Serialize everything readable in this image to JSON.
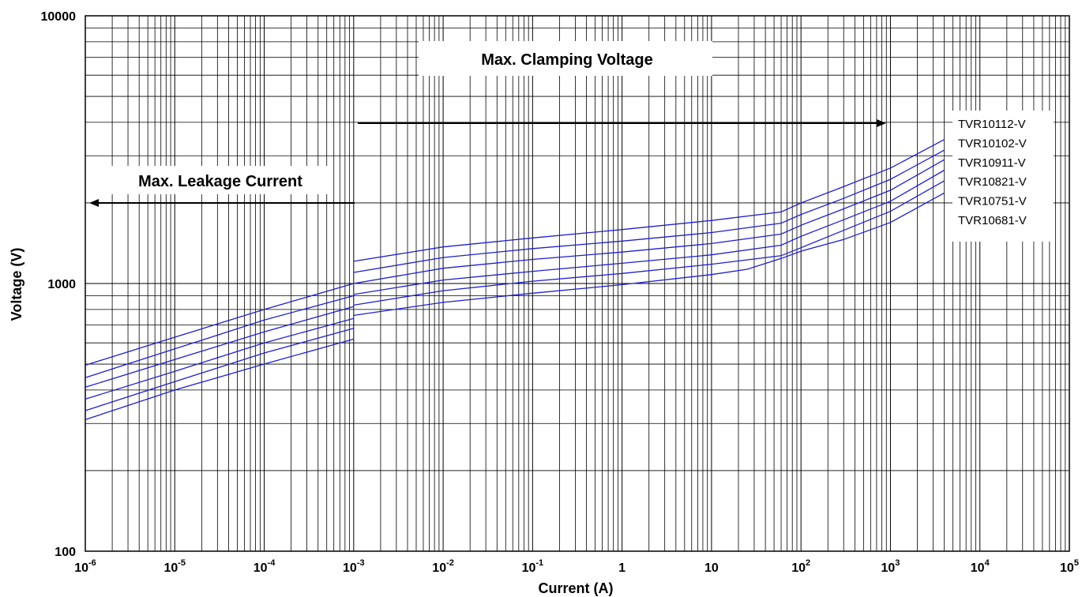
{
  "chart_data": {
    "type": "line",
    "xlabel": "Current (A)",
    "ylabel": "Voltage  (V)",
    "xscale": "log",
    "yscale": "log",
    "xlim": [
      1e-06,
      100000
    ],
    "ylim": [
      100,
      10000
    ],
    "grid": true,
    "x_ticks": [
      {
        "base": "10",
        "exp": "-6"
      },
      {
        "base": "10",
        "exp": "-5"
      },
      {
        "base": "10",
        "exp": "-4"
      },
      {
        "base": "10",
        "exp": "-3"
      },
      {
        "base": "10",
        "exp": "-2"
      },
      {
        "base": "10",
        "exp": "-1"
      },
      {
        "base": "1",
        "exp": ""
      },
      {
        "base": "10",
        "exp": ""
      },
      {
        "base": "10",
        "exp": "2"
      },
      {
        "base": "10",
        "exp": "3"
      },
      {
        "base": "10",
        "exp": "4"
      },
      {
        "base": "10",
        "exp": "5"
      }
    ],
    "y_ticks": [
      "100",
      "1000",
      "10000"
    ],
    "annotations": {
      "clamping": "Max.  Clamping  Voltage",
      "leakage": "Max. Leakage Current"
    },
    "legend_position": "right",
    "line_color": "#1f1fcc",
    "series": [
      {
        "name": "TVR10112-V",
        "leakage": {
          "x": [
            1e-06,
            1e-05,
            0.0001,
            0.001
          ],
          "y": [
            495,
            630,
            800,
            1000
          ]
        },
        "clamping": {
          "x": [
            0.001,
            0.01,
            0.1,
            1,
            10,
            60,
            100,
            300,
            1000,
            4000
          ],
          "y": [
            1210,
            1370,
            1480,
            1590,
            1720,
            1850,
            2000,
            2300,
            2700,
            3450
          ]
        }
      },
      {
        "name": "TVR10102-V",
        "leakage": {
          "x": [
            1e-06,
            1e-05,
            0.0001,
            0.001
          ],
          "y": [
            445,
            570,
            730,
            900
          ]
        },
        "clamping": {
          "x": [
            0.001,
            0.01,
            0.1,
            1,
            10,
            60,
            100,
            300,
            1000,
            4000
          ],
          "y": [
            1100,
            1250,
            1350,
            1440,
            1550,
            1680,
            1810,
            2080,
            2450,
            3150
          ]
        }
      },
      {
        "name": "TVR10911-V",
        "leakage": {
          "x": [
            1e-06,
            1e-05,
            0.0001,
            0.001
          ],
          "y": [
            410,
            520,
            660,
            820
          ]
        },
        "clamping": {
          "x": [
            0.001,
            0.01,
            0.1,
            1,
            10,
            60,
            100,
            300,
            1000,
            4000
          ],
          "y": [
            1000,
            1140,
            1230,
            1310,
            1410,
            1530,
            1650,
            1900,
            2230,
            2900
          ]
        }
      },
      {
        "name": "TVR10821-V",
        "leakage": {
          "x": [
            1e-06,
            1e-05,
            0.0001,
            0.001
          ],
          "y": [
            370,
            470,
            600,
            740
          ]
        },
        "clamping": {
          "x": [
            0.001,
            0.01,
            0.1,
            1,
            10,
            60,
            100,
            300,
            1000,
            4000
          ],
          "y": [
            910,
            1030,
            1110,
            1190,
            1280,
            1390,
            1500,
            1730,
            2030,
            2650
          ]
        }
      },
      {
        "name": "TVR10751-V",
        "leakage": {
          "x": [
            1e-06,
            1e-05,
            0.0001,
            0.001
          ],
          "y": [
            335,
            430,
            550,
            680
          ]
        },
        "clamping": {
          "x": [
            0.001,
            0.01,
            0.1,
            1,
            10,
            60,
            100,
            300,
            1000,
            4000
          ],
          "y": [
            830,
            940,
            1020,
            1090,
            1180,
            1270,
            1360,
            1580,
            1860,
            2420
          ]
        }
      },
      {
        "name": "TVR10681-V",
        "leakage": {
          "x": [
            1e-06,
            1e-05,
            0.0001,
            0.001
          ],
          "y": [
            310,
            400,
            500,
            620
          ]
        },
        "clamping": {
          "x": [
            0.001,
            0.01,
            0.1,
            1,
            10,
            25,
            60,
            100,
            300,
            1000,
            4000
          ],
          "y": [
            760,
            850,
            920,
            990,
            1080,
            1130,
            1240,
            1320,
            1460,
            1690,
            2180
          ]
        }
      }
    ]
  }
}
